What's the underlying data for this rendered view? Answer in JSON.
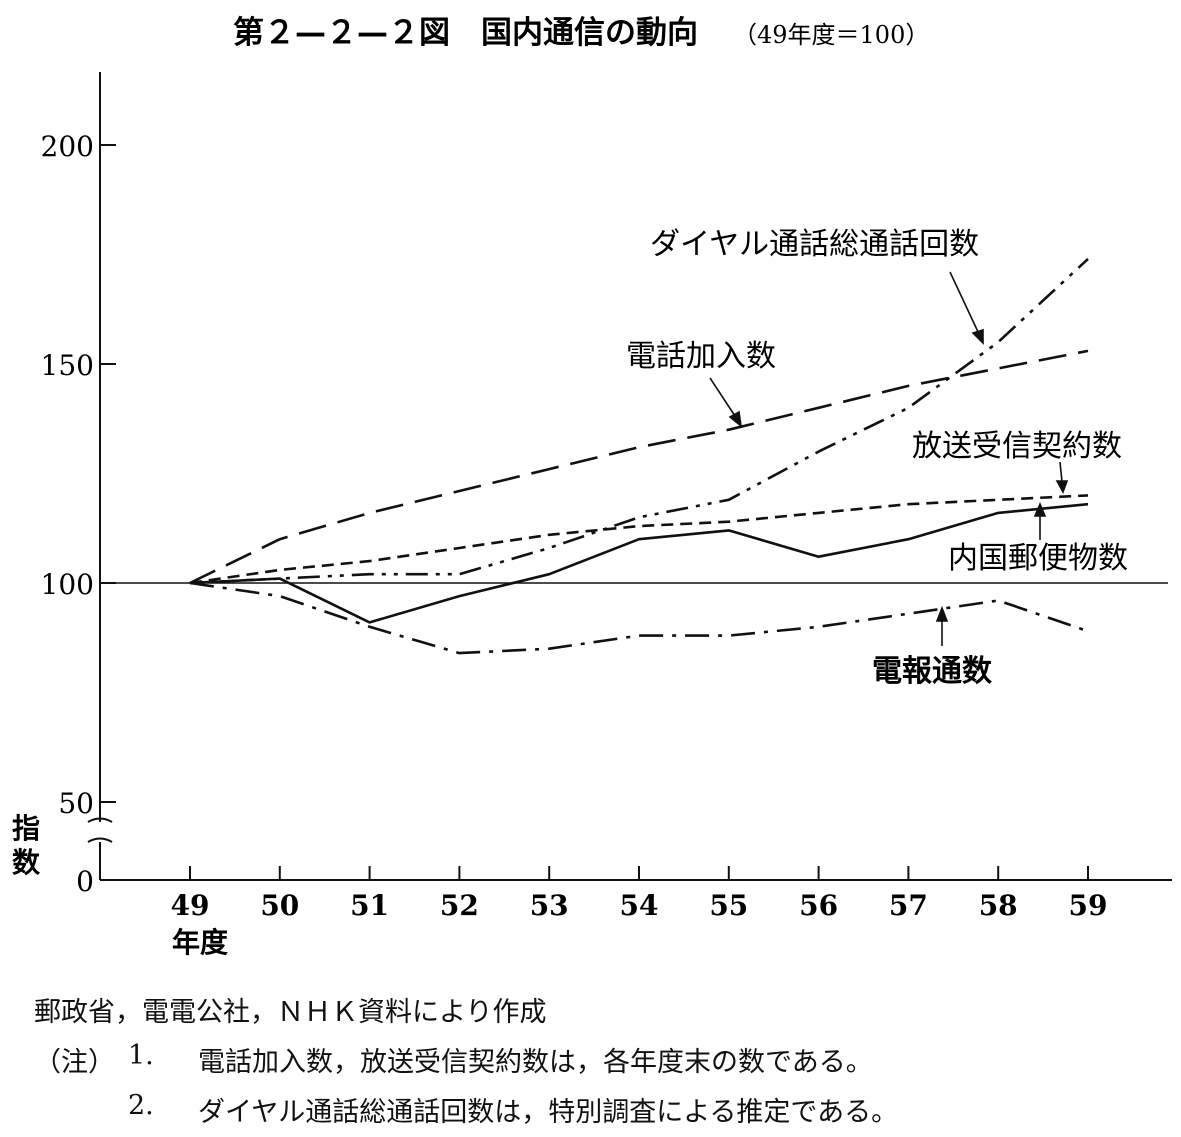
{
  "chart_data": {
    "type": "line",
    "title": "第２—２—２図　国内通信の動向",
    "subtitle": "（49年度＝100）",
    "ylabel": "指数",
    "xlabel": "年度",
    "x": [
      49,
      50,
      51,
      52,
      53,
      54,
      55,
      56,
      57,
      58,
      59
    ],
    "ylim": [
      0,
      215
    ],
    "y_axis_break": [
      0,
      50
    ],
    "yticks": [
      0,
      50,
      100,
      150,
      200
    ],
    "reference_line": 100,
    "grid": false,
    "series": [
      {
        "name": "ダイヤル通話総通話回数",
        "dash": "dashdotdot",
        "values": [
          100,
          101,
          102,
          102,
          108,
          115,
          119,
          130,
          140,
          155,
          174
        ]
      },
      {
        "name": "電話加入数",
        "dash": "longdash",
        "values": [
          100,
          110,
          116,
          121,
          126,
          131,
          135,
          140,
          145,
          149,
          153
        ]
      },
      {
        "name": "放送受信契約数",
        "dash": "shortdash",
        "values": [
          100,
          103,
          105,
          108,
          111,
          113,
          114,
          116,
          118,
          119,
          120
        ]
      },
      {
        "name": "内国郵便物数",
        "dash": "solid",
        "values": [
          100,
          101,
          91,
          97,
          102,
          110,
          112,
          106,
          110,
          116,
          118
        ]
      },
      {
        "name": "電報通数",
        "dash": "dashdot",
        "values": [
          100,
          97,
          90,
          84,
          85,
          88,
          88,
          90,
          93,
          96,
          89
        ]
      }
    ]
  },
  "notes": {
    "source": "郵政省，電電公社，ＮＨＫ資料により作成",
    "note_label": "（注）",
    "items": [
      {
        "num": "1.",
        "text": "電話加入数，放送受信契約数は，各年度末の数である。"
      },
      {
        "num": "2.",
        "text": "ダイヤル通話総通話回数は，特別調査による推定である。"
      }
    ]
  }
}
